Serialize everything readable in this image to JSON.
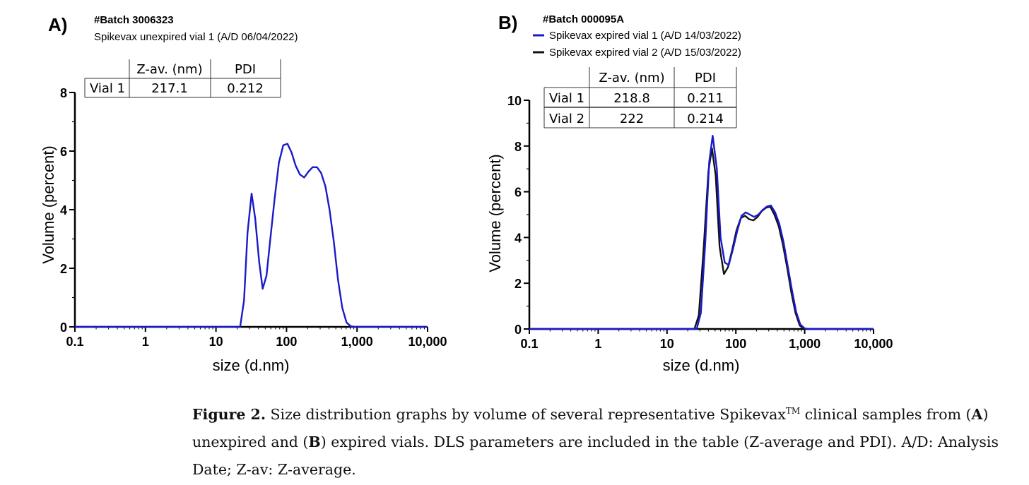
{
  "figure": {
    "panels": [
      {
        "letter": "A)",
        "batch": "#Batch 3006323",
        "legend": [
          "Spikevax unexpired vial 1 (A/D 06/04/2022)"
        ],
        "table": {
          "headers": [
            "",
            "Z-av. (nm)",
            "PDI"
          ],
          "rows": [
            [
              "Vial 1",
              "217.1",
              "0.212"
            ]
          ]
        }
      },
      {
        "letter": "B)",
        "batch": "#Batch 000095A",
        "legend": [
          "Spikevax expired vial 1 (A/D 14/03/2022)",
          "Spikevax expired vial 2 (A/D 15/03/2022)"
        ],
        "table": {
          "headers": [
            "",
            "Z-av. (nm)",
            "PDI"
          ],
          "rows": [
            [
              "Vial 1",
              "218.8",
              "0.211"
            ],
            [
              "Vial 2",
              "222",
              "0.214"
            ]
          ]
        }
      }
    ]
  },
  "chart_data": [
    {
      "type": "line",
      "xscale": "log",
      "xlabel": "size (d.nm)",
      "ylabel": "Volume (percent)",
      "xlim": [
        0.1,
        10000
      ],
      "ylim": [
        0,
        8
      ],
      "xticks": [
        0.1,
        1,
        10,
        100,
        1000,
        10000
      ],
      "xtick_labels": [
        "0.1",
        "1",
        "10",
        "100",
        "1,000",
        "10,000"
      ],
      "yticks": [
        0,
        2,
        4,
        6,
        8
      ],
      "ytick_labels": [
        "0",
        "2",
        "4",
        "6",
        "8"
      ],
      "grid": false,
      "legend": "top-left",
      "series": [
        {
          "name": "Spikevax unexpired vial 1 (A/D 06/04/2022)",
          "color": "#1a1ac8",
          "x": [
            0.1,
            22,
            25,
            28,
            32,
            36,
            41,
            46,
            52,
            59,
            68,
            78,
            90,
            103,
            118,
            135,
            155,
            178,
            205,
            235,
            270,
            310,
            356,
            408,
            469,
            538,
            618,
            709,
            814,
            935,
            1070,
            1230,
            10000
          ],
          "y": [
            0,
            0,
            0.9,
            3.2,
            4.55,
            3.7,
            2.2,
            1.3,
            1.75,
            3.0,
            4.4,
            5.6,
            6.2,
            6.25,
            5.95,
            5.5,
            5.2,
            5.1,
            5.3,
            5.45,
            5.45,
            5.25,
            4.8,
            4.0,
            2.9,
            1.6,
            0.65,
            0.15,
            0.02,
            0,
            0,
            0,
            0
          ]
        }
      ]
    },
    {
      "type": "line",
      "xscale": "log",
      "xlabel": "size (d.nm)",
      "ylabel": "Volume (percent)",
      "xlim": [
        0.1,
        10000
      ],
      "ylim": [
        0,
        10
      ],
      "xticks": [
        0.1,
        1,
        10,
        100,
        1000,
        10000
      ],
      "xtick_labels": [
        "0.1",
        "1",
        "10",
        "100",
        "1,000",
        "10,000"
      ],
      "yticks": [
        0,
        2,
        4,
        6,
        8,
        10
      ],
      "ytick_labels": [
        "0",
        "2",
        "4",
        "6",
        "8",
        "10"
      ],
      "grid": false,
      "legend": "top-left",
      "series": [
        {
          "name": "Spikevax expired vial 2 (A/D 15/03/2022)",
          "color": "#111111",
          "x": [
            0.1,
            25,
            29,
            34,
            40,
            45,
            51,
            58,
            67,
            77,
            89,
            102,
            118,
            136,
            156,
            180,
            207,
            238,
            274,
            316,
            363,
            419,
            482,
            555,
            639,
            736,
            847,
            975,
            1120,
            10000
          ],
          "y": [
            0,
            0,
            0.6,
            3.5,
            6.9,
            7.9,
            6.7,
            3.6,
            2.4,
            2.7,
            3.5,
            4.3,
            4.85,
            4.95,
            4.8,
            4.75,
            4.9,
            5.15,
            5.3,
            5.35,
            5.0,
            4.5,
            3.7,
            2.7,
            1.6,
            0.7,
            0.15,
            0.02,
            0,
            0
          ]
        },
        {
          "name": "Spikevax expired vial 1 (A/D 14/03/2022)",
          "color": "#1a1ac8",
          "x": [
            0.1,
            27,
            31,
            36,
            41,
            46,
            53,
            60,
            69,
            79,
            91,
            105,
            121,
            139,
            160,
            184,
            212,
            244,
            281,
            323,
            372,
            428,
            493,
            567,
            653,
            751,
            864,
            995,
            1150,
            10000
          ],
          "y": [
            0,
            0,
            0.7,
            3.8,
            7.3,
            8.45,
            7.0,
            4.0,
            2.9,
            2.8,
            3.5,
            4.3,
            4.95,
            5.1,
            5.0,
            4.9,
            5.0,
            5.2,
            5.35,
            5.4,
            5.1,
            4.6,
            3.8,
            2.75,
            1.7,
            0.75,
            0.2,
            0.03,
            0,
            0
          ]
        }
      ]
    }
  ],
  "caption": {
    "label": "Figure 2.",
    "part1": " Size distribution graphs by volume of several representative Spikevax",
    "tm": "TM",
    "part2": " clinical samples from (",
    "a": "A",
    "part3": ") unexpired and (",
    "b": "B",
    "part4": ") expired vials. DLS parameters are included in the table (Z-average and PDI). A/D: Analysis Date; Z-av: Z-average."
  }
}
